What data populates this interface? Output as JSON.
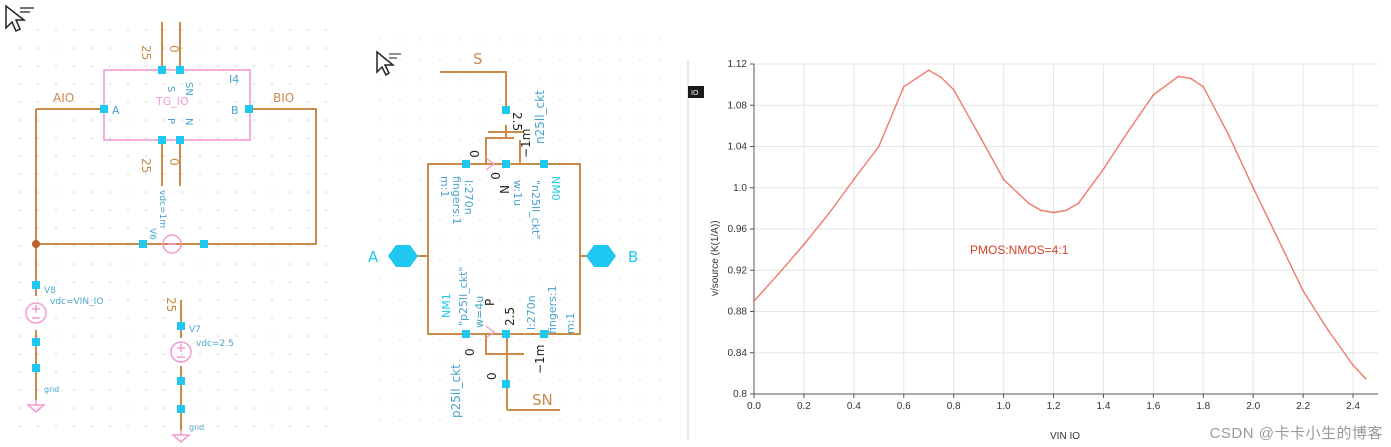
{
  "colors": {
    "wire": "#c98a4a",
    "pin": "#1ec8f0",
    "symbol": "#f29ad2",
    "label": "#c98a4a",
    "param": "#4aa3cc",
    "terminal": "#1ec8f0",
    "curve": "#f07a6a",
    "annotation": "#d8412b",
    "grid": "#e6e6e6",
    "axis": "#444444"
  },
  "left_schematic": {
    "instance_name": "I4",
    "cell_name": "TG_IO",
    "net_left": "AIO",
    "net_right": "BIO",
    "pin_a": "A",
    "pin_b": "B",
    "pin_s": "S",
    "pin_sn": "SN",
    "pin_p": "P",
    "pin_n": "N",
    "top_s_value": "25",
    "top_sn_value": "0",
    "bottom_p_value": "25",
    "bottom_n_value": "0",
    "v6_name": "V6",
    "v6_param": "vdc=1m",
    "v8_name": "V8",
    "v8_param": "vdc=VIN_IO",
    "v7_name": "V7",
    "v7_param": "vdc=2.5",
    "v7_value": "25",
    "gnd_label_1": "gnd",
    "gnd_label_2": "gnd"
  },
  "middle_schematic": {
    "term_s": "S",
    "term_sn": "SN",
    "term_a": "A",
    "term_b": "B",
    "nmos_name": "NM0",
    "pmos_name": "NM1",
    "nmos_model": "n25ll_ckt",
    "pmos_model": "p25ll_ckt",
    "nmos_model_q": "\"n25ll_ckt\"",
    "pmos_model_q": "\"p25ll_ckt\"",
    "nmos_vbias": "2.5",
    "nmos_bulk": "0",
    "nmos_bulk2": "0",
    "nmos_minus": "−1m",
    "pmos_vbias": "2.5",
    "pmos_bulk": "0",
    "pmos_bulk2": "0",
    "pmos_minus": "−1m",
    "nmos_m": "m:1",
    "nmos_fingers": "fingers:1",
    "nmos_l": "l:270n",
    "nmos_w": "w:1u",
    "nmos_n": "N",
    "pmos_m": "m:1",
    "pmos_fingers": "fingers:1",
    "pmos_l": "l:270n",
    "pmos_w": "w=4u",
    "pmos_p": "P"
  },
  "chart_data": {
    "type": "line",
    "ylabel": "v/source (K(1/A))",
    "xlabel": "VIN IO",
    "legend_box": "IO",
    "annotation": "PMOS:NMOS=4:1",
    "xlim": [
      0.0,
      2.5
    ],
    "ylim": [
      0.8,
      1.12
    ],
    "x_ticks": [
      "0.0",
      "0.2",
      "0.4",
      "0.6",
      "0.8",
      "1.0",
      "1.2",
      "1.4",
      "1.6",
      "1.8",
      "2.0",
      "2.2",
      "2.4"
    ],
    "y_ticks": [
      "0.8",
      "0.84",
      "0.88",
      "0.92",
      "0.96",
      "1.0",
      "1.04",
      "1.08",
      "1.12"
    ],
    "grid": true,
    "series": [
      {
        "x": [
          0.0,
          0.1,
          0.2,
          0.3,
          0.4,
          0.5,
          0.6,
          0.7,
          0.75,
          0.8,
          0.9,
          1.0,
          1.1,
          1.15,
          1.2,
          1.25,
          1.3,
          1.4,
          1.5,
          1.6,
          1.7,
          1.75,
          1.8,
          1.9,
          2.0,
          2.1,
          2.2,
          2.3,
          2.4,
          2.45
        ],
        "y": [
          0.89,
          0.917,
          0.945,
          0.975,
          1.008,
          1.04,
          1.098,
          1.114,
          1.107,
          1.095,
          1.052,
          1.008,
          0.985,
          0.978,
          0.976,
          0.978,
          0.985,
          1.018,
          1.055,
          1.09,
          1.108,
          1.106,
          1.098,
          1.052,
          1.0,
          0.95,
          0.9,
          0.862,
          0.828,
          0.815
        ]
      }
    ]
  },
  "watermark": "CSDN @卡卡小生的博客"
}
